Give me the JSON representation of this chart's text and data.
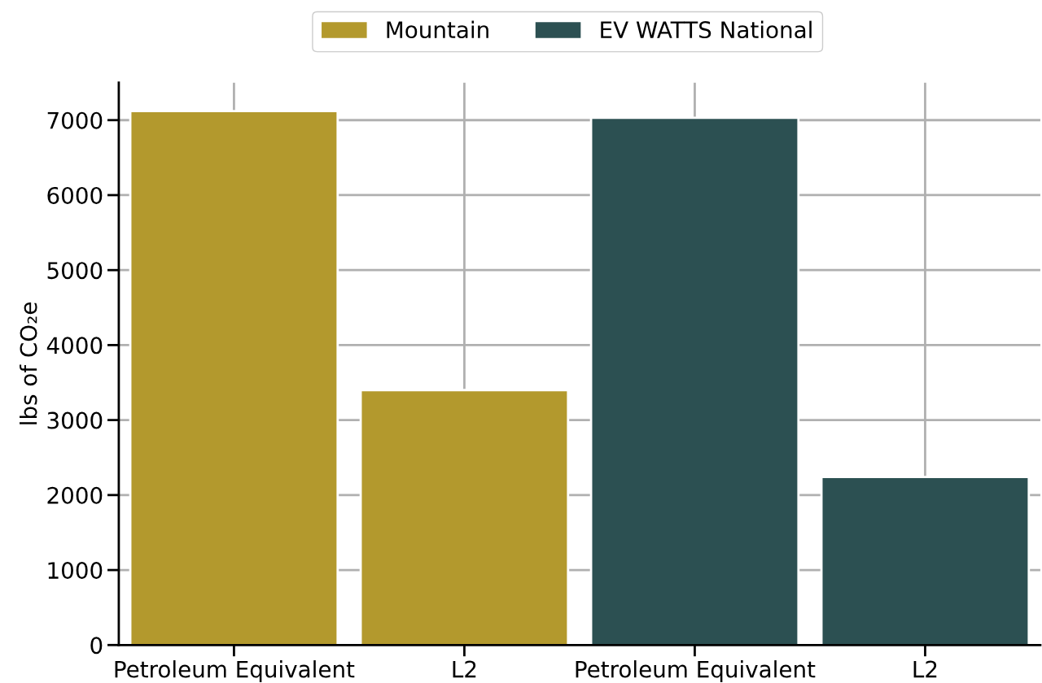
{
  "chart_data": {
    "type": "bar",
    "categories": [
      "Petroleum Equivalent",
      "L2",
      "Petroleum Equivalent",
      "L2"
    ],
    "series": [
      {
        "name": "Mountain",
        "color": "#b3992d",
        "values": [
          7120,
          3400,
          null,
          null
        ]
      },
      {
        "name": "EV WATTS National",
        "color": "#2c5052",
        "values": [
          null,
          null,
          7030,
          2240
        ]
      }
    ],
    "ylabel": "lbs of CO₂e",
    "ylim": [
      0,
      7500
    ],
    "yticks": [
      0,
      1000,
      2000,
      3000,
      4000,
      5000,
      6000,
      7000
    ],
    "grid": true,
    "legend": "top"
  }
}
